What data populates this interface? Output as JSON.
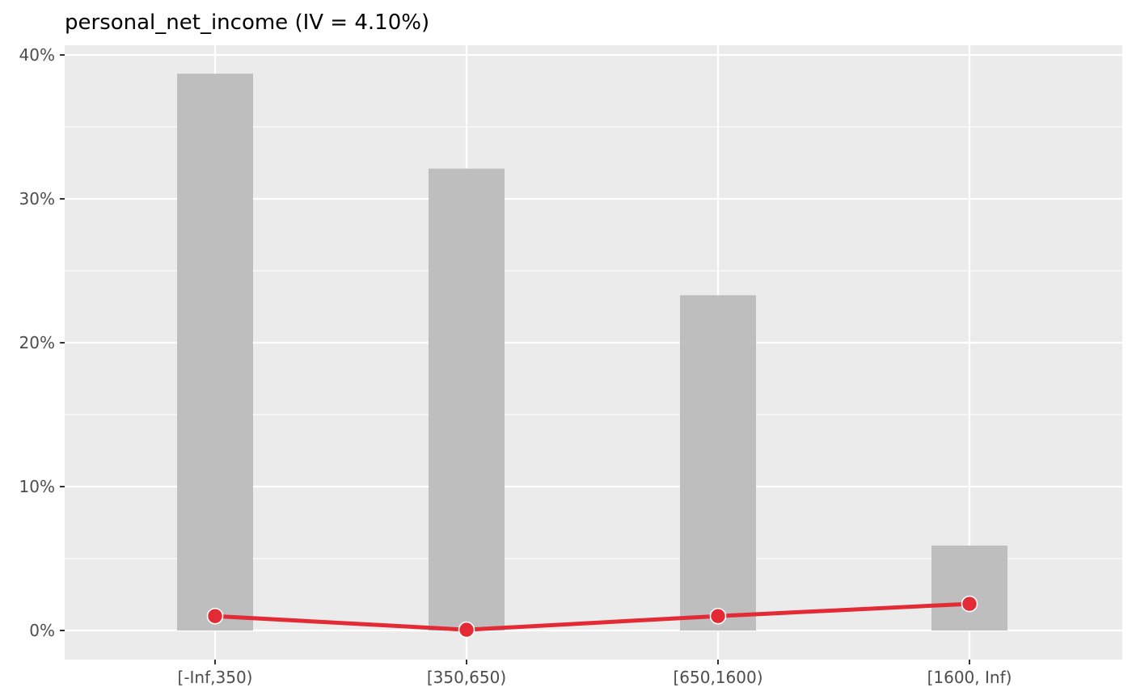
{
  "chart_data": {
    "type": "bar",
    "title": "personal_net_income (IV = 4.10%)",
    "xlabel": "",
    "ylabel": "",
    "categories": [
      "[-Inf,350)",
      "[350,650)",
      "[650,1600)",
      "[1600, Inf)"
    ],
    "series": [
      {
        "type": "bar",
        "values": [
          38.7,
          32.1,
          23.3,
          5.9
        ]
      },
      {
        "type": "line",
        "values": [
          1.0,
          0.05,
          1.0,
          1.85
        ]
      }
    ],
    "ylim": [
      0,
      40
    ],
    "y_ticks": [
      "0%",
      "10%",
      "20%",
      "30%",
      "40%"
    ],
    "y_tick_values": [
      0,
      10,
      20,
      30,
      40
    ],
    "grid": true,
    "colors": {
      "panel": "#ebebeb",
      "grid": "#ffffff",
      "bar": "#bebebe",
      "line": "#e32b36"
    }
  }
}
